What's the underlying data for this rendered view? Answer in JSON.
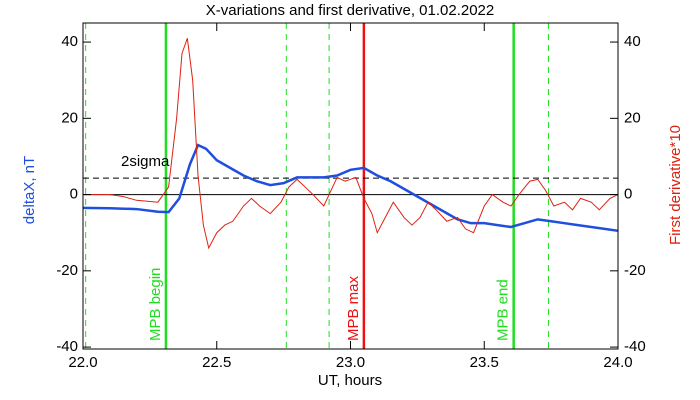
{
  "chart_data": {
    "type": "line",
    "title": "X-variations and first derivative, 01.02.2022",
    "xlabel": "UT, hours",
    "ylabel": "deltaX, nT",
    "y2label": "First derivative*10",
    "xlim": [
      22.0,
      24.0
    ],
    "xticks": [
      {
        "value": 22.0,
        "label": "22.0"
      },
      {
        "value": 22.5,
        "label": "22.5"
      },
      {
        "value": 23.0,
        "label": "23.0"
      },
      {
        "value": 23.5,
        "label": "23.5"
      },
      {
        "value": 24.0,
        "label": "24.0"
      }
    ],
    "ylim": [
      -40.5,
      45
    ],
    "yticks": [
      -40,
      -20,
      0,
      20,
      40
    ],
    "y2lim": [
      -40.5,
      45
    ],
    "y2ticks": [
      -40,
      -20,
      0,
      20,
      40
    ],
    "series": [
      {
        "name": "deltaX",
        "color": "#1f4fdc",
        "x": [
          22.0,
          22.1,
          22.2,
          22.28,
          22.32,
          22.36,
          22.4,
          22.43,
          22.46,
          22.5,
          22.55,
          22.6,
          22.65,
          22.7,
          22.75,
          22.8,
          22.85,
          22.9,
          22.95,
          23.0,
          23.05,
          23.1,
          23.15,
          23.2,
          23.25,
          23.3,
          23.35,
          23.4,
          23.45,
          23.5,
          23.55,
          23.6,
          23.65,
          23.7,
          23.75,
          23.8,
          23.85,
          23.9,
          23.95,
          24.0
        ],
        "values": [
          -3.5,
          -3.6,
          -3.8,
          -4.5,
          -4.6,
          -1,
          8,
          13,
          12,
          9,
          7,
          5,
          3.5,
          2.5,
          3,
          4.5,
          4.5,
          4.5,
          5,
          6.5,
          7,
          5,
          3.5,
          1.5,
          -0.5,
          -2.5,
          -4.5,
          -6.5,
          -7.5,
          -7.5,
          -8,
          -8.5,
          -7.5,
          -6.5,
          -7,
          -7.5,
          -8,
          -8.5,
          -9,
          -9.5
        ]
      },
      {
        "name": "First derivative*10",
        "color": "#dd2211",
        "axis": "y2",
        "x": [
          22.0,
          22.1,
          22.15,
          22.2,
          22.28,
          22.32,
          22.35,
          22.37,
          22.39,
          22.41,
          22.43,
          22.45,
          22.47,
          22.5,
          22.53,
          22.56,
          22.6,
          22.63,
          22.66,
          22.7,
          22.74,
          22.77,
          22.8,
          22.83,
          22.86,
          22.9,
          22.92,
          22.95,
          22.98,
          23.0,
          23.02,
          23.05,
          23.08,
          23.1,
          23.13,
          23.16,
          23.2,
          23.23,
          23.26,
          23.29,
          23.32,
          23.36,
          23.4,
          23.43,
          23.46,
          23.5,
          23.53,
          23.57,
          23.6,
          23.63,
          23.67,
          23.7,
          23.73,
          23.76,
          23.8,
          23.83,
          23.86,
          23.9,
          23.93,
          23.97,
          24.0
        ],
        "values": [
          0,
          0,
          -0.5,
          -1.5,
          -2,
          2,
          20,
          37,
          41,
          30,
          5,
          -8,
          -14,
          -10,
          -8,
          -7,
          -3,
          -1,
          -3,
          -5,
          -2,
          2,
          4,
          2,
          0,
          -3,
          0,
          4.5,
          3.5,
          4,
          4.5,
          -1,
          -5,
          -10,
          -6,
          -2,
          -6,
          -8,
          -6,
          -2,
          -4,
          -7,
          -6,
          -9,
          -10,
          -3,
          0,
          -2,
          -3,
          0,
          3.5,
          4,
          1,
          -3,
          -2,
          -4,
          -1,
          -2,
          -4,
          -1,
          0
        ]
      }
    ],
    "threshold": {
      "y": 4.3,
      "label": "2sigma"
    },
    "vlines": [
      {
        "x": 22.01,
        "color": "#22dd22",
        "dashed": true
      },
      {
        "x": 22.31,
        "color": "#22dd22",
        "dashed": false,
        "label": "MPB begin"
      },
      {
        "x": 22.76,
        "color": "#22dd22",
        "dashed": true
      },
      {
        "x": 22.92,
        "color": "#22dd22",
        "dashed": true
      },
      {
        "x": 23.05,
        "color": "#ee1111",
        "dashed": false,
        "label": "MPB max"
      },
      {
        "x": 23.61,
        "color": "#22dd22",
        "dashed": false,
        "label": "MPB end"
      },
      {
        "x": 23.74,
        "color": "#22dd22",
        "dashed": true
      }
    ]
  }
}
